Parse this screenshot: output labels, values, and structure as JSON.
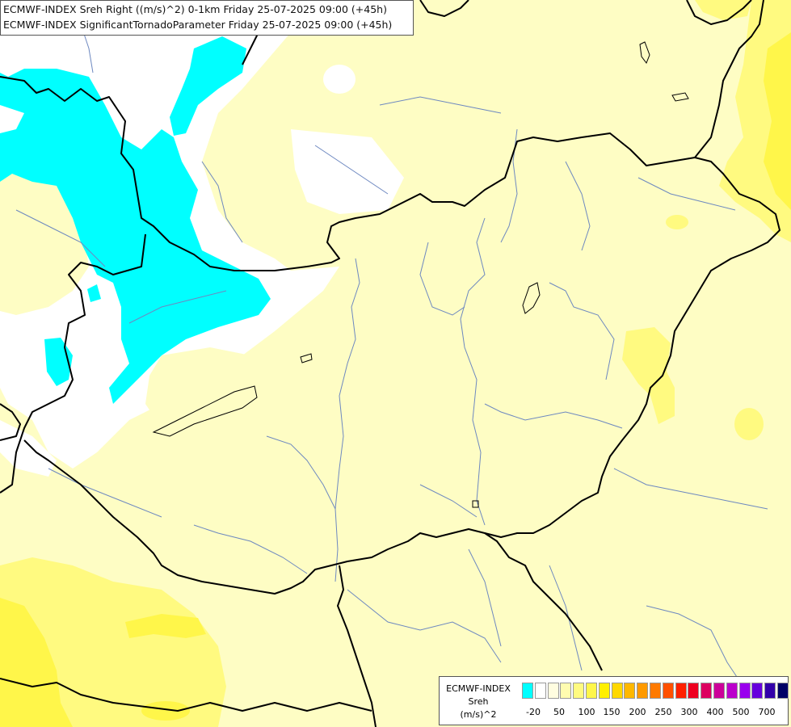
{
  "header": {
    "line1": "ECMWF-INDEX Sreh Right ((m/s)^2) 0-1km Friday 25-07-2025 09:00 (+45h)",
    "line2": "ECMWF-INDEX SignificantTornadoParameter Friday 25-07-2025 09:00 (+45h)"
  },
  "legend": {
    "title": "ECMWF-INDEX",
    "parameter": "Sreh",
    "unit": "(m/s)^2",
    "colors": [
      "#00ffff",
      "#ffffff",
      "#fffde0",
      "#fffcb0",
      "#fffa80",
      "#fff64a",
      "#fff000",
      "#ffd800",
      "#ffb800",
      "#ff9a00",
      "#ff7a00",
      "#ff5000",
      "#ff2000",
      "#ee0020",
      "#dd0060",
      "#cc0099",
      "#bb00cc",
      "#9900ee",
      "#6600dd",
      "#3300aa",
      "#000066"
    ],
    "ticks": [
      "-20",
      "50",
      "100",
      "150",
      "200",
      "250",
      "300",
      "400",
      "500",
      "700"
    ]
  }
}
